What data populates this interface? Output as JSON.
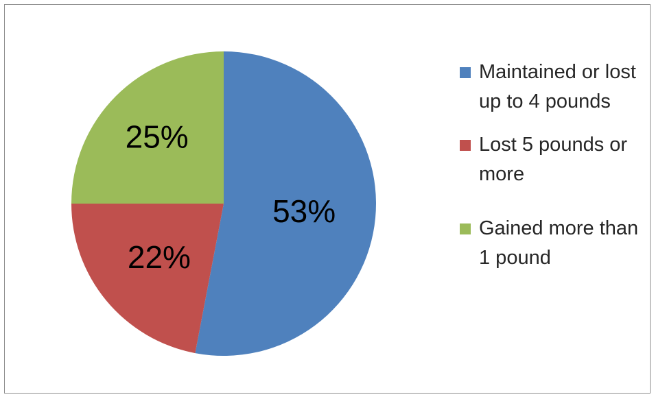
{
  "chart_data": {
    "type": "pie",
    "title": "",
    "series": [
      {
        "name": "Maintained or lost up to 4 pounds",
        "value": 53,
        "label": "53%",
        "color": "#4F81BD"
      },
      {
        "name": "Lost 5 pounds or more",
        "value": 22,
        "label": "22%",
        "color": "#C0504D"
      },
      {
        "name": "Gained more than 1 pound",
        "value": 25,
        "label": "25%",
        "color": "#9BBB59"
      }
    ],
    "legend_position": "right",
    "start_angle": "12 o'clock, clockwise"
  }
}
